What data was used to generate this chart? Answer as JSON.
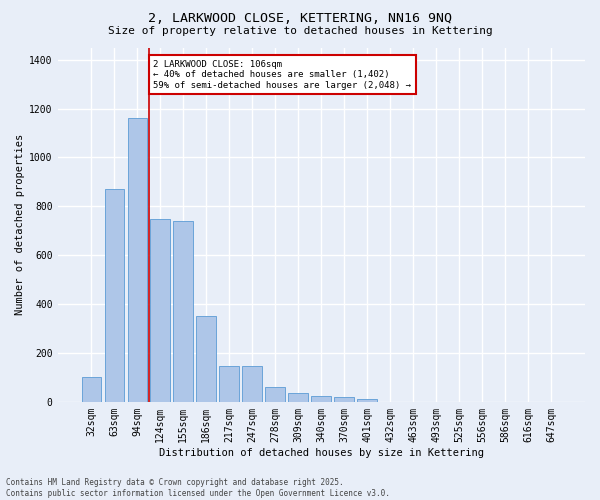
{
  "title": "2, LARKWOOD CLOSE, KETTERING, NN16 9NQ",
  "subtitle": "Size of property relative to detached houses in Kettering",
  "xlabel": "Distribution of detached houses by size in Kettering",
  "ylabel": "Number of detached properties",
  "categories": [
    "32sqm",
    "63sqm",
    "94sqm",
    "124sqm",
    "155sqm",
    "186sqm",
    "217sqm",
    "247sqm",
    "278sqm",
    "309sqm",
    "340sqm",
    "370sqm",
    "401sqm",
    "432sqm",
    "463sqm",
    "493sqm",
    "525sqm",
    "556sqm",
    "586sqm",
    "616sqm",
    "647sqm"
  ],
  "values": [
    100,
    870,
    1160,
    750,
    740,
    350,
    145,
    145,
    60,
    35,
    25,
    18,
    12,
    0,
    0,
    0,
    0,
    0,
    0,
    0,
    0
  ],
  "bar_color": "#aec6e8",
  "bar_edge_color": "#5b9bd5",
  "bg_color": "#e8eef8",
  "grid_color": "#ffffff",
  "vline_color": "#cc0000",
  "vline_pos": 2.5,
  "annotation_text": "2 LARKWOOD CLOSE: 106sqm\n← 40% of detached houses are smaller (1,402)\n59% of semi-detached houses are larger (2,048) →",
  "annotation_box_color": "#ffffff",
  "annotation_box_edge": "#cc0000",
  "footer": "Contains HM Land Registry data © Crown copyright and database right 2025.\nContains public sector information licensed under the Open Government Licence v3.0.",
  "ylim": [
    0,
    1450
  ],
  "yticks": [
    0,
    200,
    400,
    600,
    800,
    1000,
    1200,
    1400
  ],
  "title_fontsize": 9.5,
  "subtitle_fontsize": 8,
  "tick_fontsize": 7,
  "ylabel_fontsize": 7.5,
  "xlabel_fontsize": 7.5,
  "footer_fontsize": 5.5,
  "ann_fontsize": 6.5
}
